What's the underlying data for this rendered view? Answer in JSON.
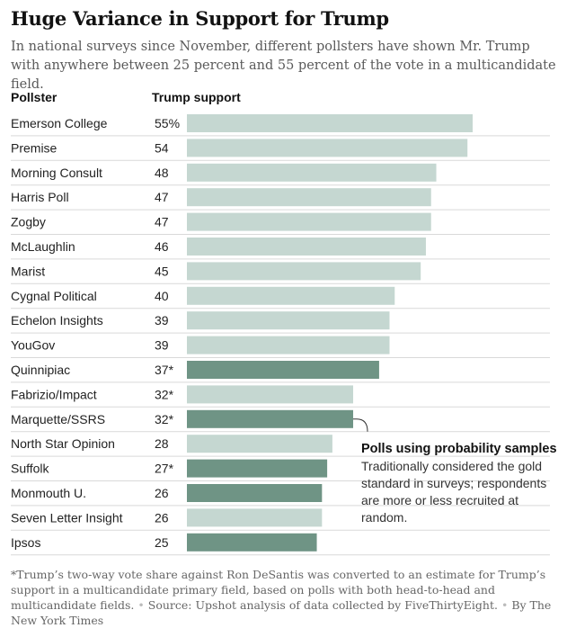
{
  "title": "Huge Variance in Support for Trump",
  "subtitle": "In national surveys since November, different pollsters have shown Mr. Trump with anywhere between 25 percent and 55 percent of the vote in a multicandidate field.",
  "columns": {
    "pollster": "Pollster",
    "support": "Trump support"
  },
  "colors": {
    "nonprobability": "#c5d7d1",
    "probability": "#6f9485",
    "divider": "#d9d9d9"
  },
  "chart_data": {
    "type": "bar",
    "orientation": "horizontal",
    "xlim": [
      0,
      55
    ],
    "categories": [
      "Emerson College",
      "Premise",
      "Morning Consult",
      "Harris Poll",
      "Zogby",
      "McLaughlin",
      "Marist",
      "Cygnal Political",
      "Echelon Insights",
      "YouGov",
      "Quinnipiac",
      "Fabrizio/Impact",
      "Marquette/SSRS",
      "North Star Opinion",
      "Suffolk",
      "Monmouth U.",
      "Seven Letter Insight",
      "Ipsos"
    ],
    "values": [
      55,
      54,
      48,
      47,
      47,
      46,
      45,
      40,
      39,
      39,
      37,
      32,
      32,
      28,
      27,
      26,
      26,
      25
    ],
    "value_labels": [
      "55%",
      "54",
      "48",
      "47",
      "47",
      "46",
      "45",
      "40",
      "39",
      "39",
      "37*",
      "32*",
      "32*",
      "28",
      "27*",
      "26",
      "26",
      "25"
    ],
    "probability_sample": [
      false,
      false,
      false,
      false,
      false,
      false,
      false,
      false,
      false,
      false,
      true,
      false,
      true,
      false,
      true,
      true,
      false,
      true
    ]
  },
  "annotation": {
    "title": "Polls using probability samples",
    "body": "Traditionally considered the gold standard in surveys; respondents are more or less recruited at random."
  },
  "footnote": {
    "note": "*Trump’s two-way vote share against Ron DeSantis was converted to an estimate for Trump’s support in a multicandidate primary field, based on polls with both head-to-head and multicandidate fields.",
    "source": "Source: Upshot analysis of data collected by FiveThirtyEight.",
    "credit": "By The New York Times"
  }
}
